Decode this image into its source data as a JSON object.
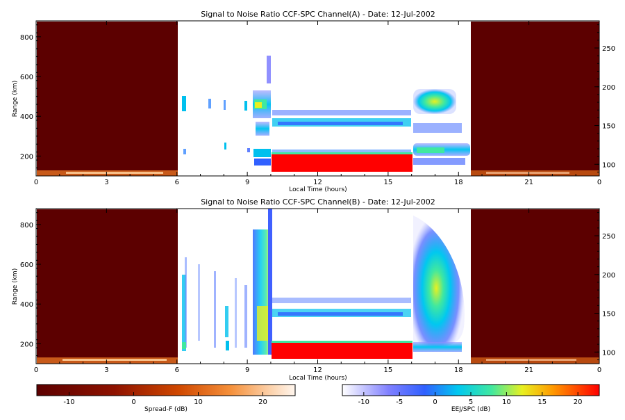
{
  "chart_data": [
    {
      "type": "heatmap",
      "title": "Signal to Noise Ratio CCF-SPC Channel(A) - Date: 12-Jul-2002",
      "xlabel": "Local Time (hours)",
      "ylabel": "Range (km)",
      "xlim": [
        0,
        24
      ],
      "x_ticks": [
        0,
        3,
        6,
        9,
        12,
        15,
        18,
        21
      ],
      "x_ticks_extra": [
        "0"
      ],
      "ylim": [
        100,
        880
      ],
      "y_ticks": [
        200,
        400,
        600,
        800
      ],
      "y2_ticks": [
        100,
        150,
        200,
        250
      ],
      "regions": [
        {
          "name": "Spread-F",
          "x_range": [
            0,
            6
          ],
          "fill_db": -15
        },
        {
          "name": "Spread-F",
          "x_range": [
            18.5,
            24
          ],
          "fill_db": -15
        },
        {
          "name": "EEJ/SPC",
          "x_range": [
            10,
            16
          ],
          "y_range": [
            120,
            210
          ],
          "snr_db": 22
        }
      ]
    },
    {
      "type": "heatmap",
      "title": "Signal to Noise Ratio CCF-SPC Channel(B) - Date: 12-Jul-2002",
      "xlabel": "Local Time (hours)",
      "ylabel": "Range (km)",
      "xlim": [
        0,
        24
      ],
      "x_ticks": [
        0,
        3,
        6,
        9,
        12,
        15,
        18,
        21
      ],
      "x_ticks_extra": [
        "0"
      ],
      "ylim": [
        100,
        880
      ],
      "y_ticks": [
        200,
        400,
        600,
        800
      ],
      "y2_ticks": [
        100,
        150,
        200,
        250
      ],
      "regions": [
        {
          "name": "Spread-F",
          "x_range": [
            0,
            6
          ],
          "fill_db": -15
        },
        {
          "name": "Spread-F",
          "x_range": [
            18.5,
            24
          ],
          "fill_db": -15
        },
        {
          "name": "EEJ/SPC",
          "x_range": [
            10,
            16
          ],
          "y_range": [
            130,
            210
          ],
          "snr_db": 22
        }
      ]
    }
  ],
  "colorbars": [
    {
      "label": "Spread-F (dB)",
      "ticks": [
        "-10",
        "0",
        "10",
        "20"
      ],
      "range": [
        -15,
        25
      ]
    },
    {
      "label": "EEJ/SPC (dB)",
      "ticks": [
        "-10",
        "-5",
        "0",
        "5",
        "10",
        "15",
        "20"
      ],
      "range": [
        -13,
        23
      ]
    }
  ]
}
